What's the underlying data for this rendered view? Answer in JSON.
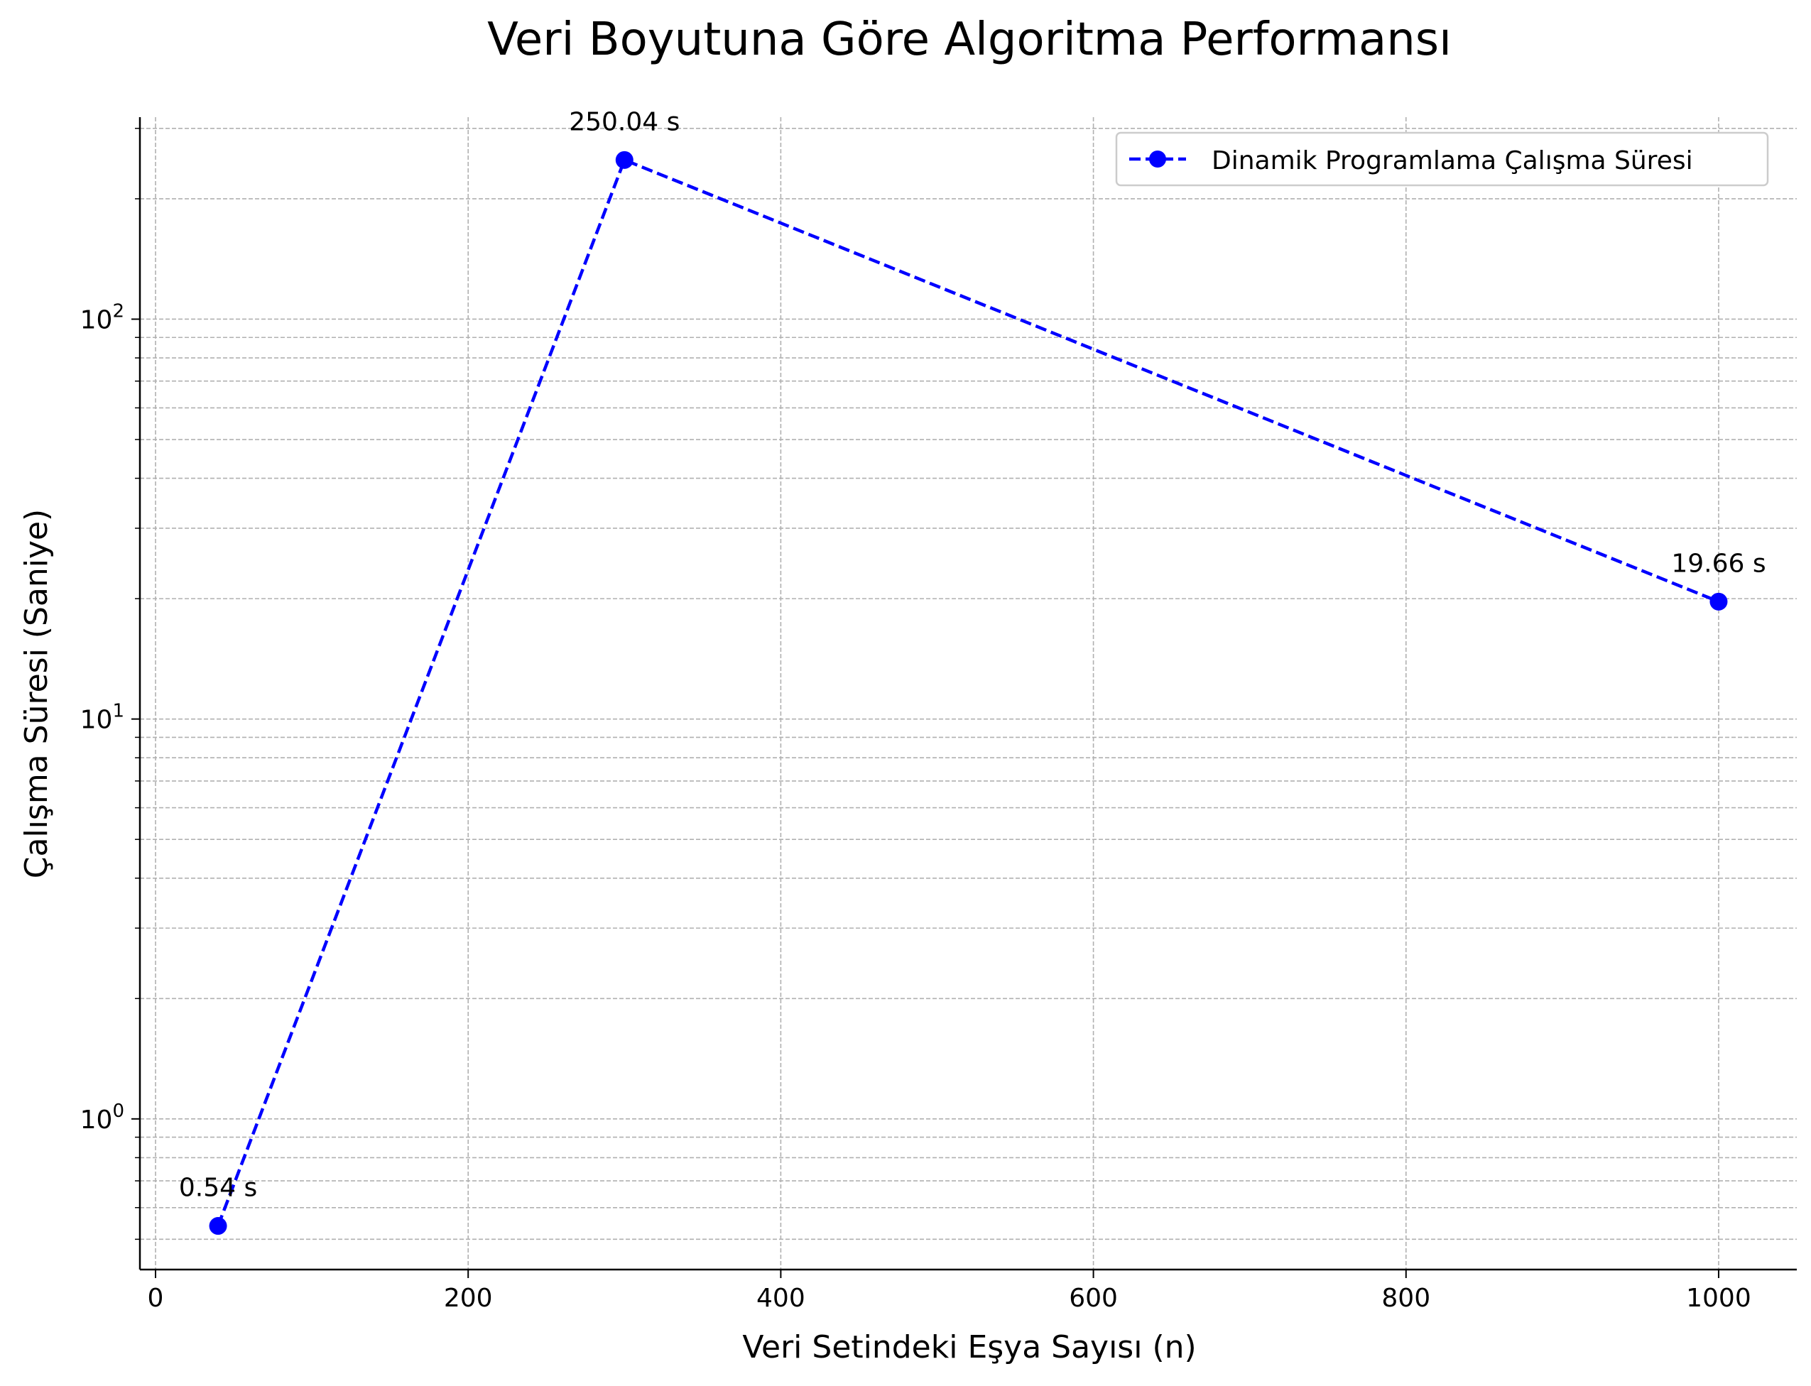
{
  "chart_data": {
    "type": "line",
    "title": "Veri Boyutuna Göre Algoritma Performansı",
    "xlabel": "Veri Setindeki Eşya Sayısı (n)",
    "ylabel": "Çalışma Süresi (Saniye)",
    "x_scale": "linear",
    "y_scale": "log",
    "xlim": [
      -10,
      1050
    ],
    "ylim": [
      0.42,
      320
    ],
    "x_ticks": [
      0,
      200,
      400,
      600,
      800,
      1000
    ],
    "x_tick_labels": [
      "0",
      "200",
      "400",
      "600",
      "800",
      "1000"
    ],
    "y_major_ticks": [
      1,
      10,
      100
    ],
    "y_tick_labels": [
      {
        "base": "10",
        "exp": "0"
      },
      {
        "base": "10",
        "exp": "1"
      },
      {
        "base": "10",
        "exp": "2"
      }
    ],
    "grid": true,
    "legend_position": "upper right",
    "series": [
      {
        "name": "Dinamik Programlama Çalışma Süresi",
        "color": "#0000ff",
        "line_style": "dashed",
        "marker": "circle",
        "x": [
          40,
          300,
          1000
        ],
        "y": [
          0.54,
          250.04,
          19.66
        ],
        "point_labels": [
          "0.54 s",
          "250.04 s",
          "19.66 s"
        ]
      }
    ],
    "colors": {
      "series": "#0000ff",
      "grid": "#b0b0b0",
      "axes": "#000000"
    }
  }
}
